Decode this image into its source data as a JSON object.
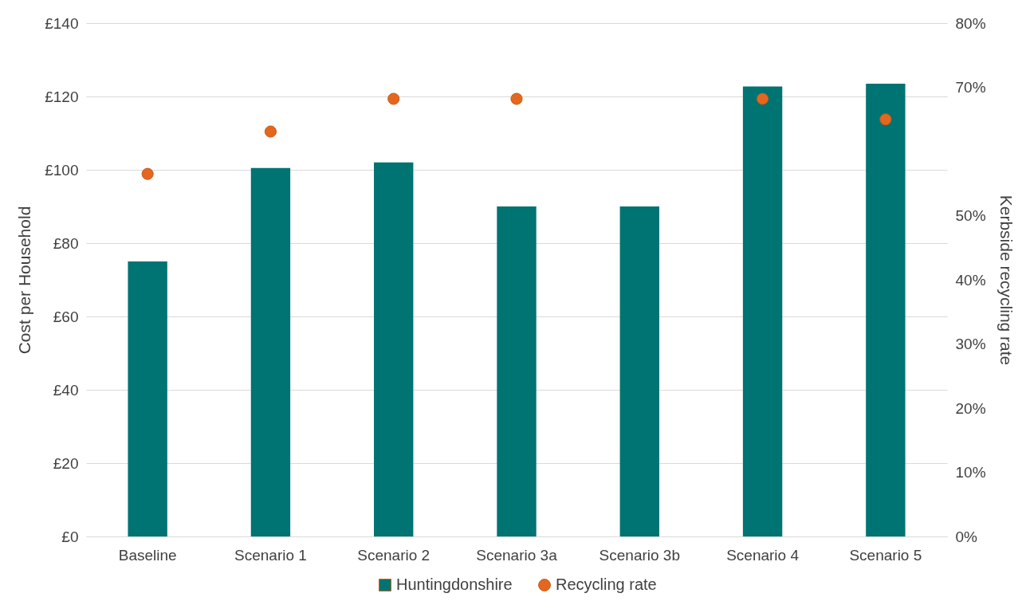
{
  "chart_data": {
    "type": "bar",
    "categories": [
      "Baseline",
      "Scenario 1",
      "Scenario 2",
      "Scenario 3a",
      "Scenario 3b",
      "Scenario 4",
      "Scenario 5"
    ],
    "series": [
      {
        "name": "Huntingdonshire",
        "color": "#007373",
        "values": [
          75,
          100.5,
          102,
          90,
          90,
          122.7,
          123.5
        ]
      },
      {
        "name": "Recycling rate",
        "type": "scatter",
        "axis": "y2",
        "color": "#e5671f",
        "values": [
          56.5,
          63.1,
          68.2,
          68.2,
          null,
          68.2,
          65
        ]
      }
    ],
    "ylabel": "Cost per Household",
    "y2label": "Kerbside recycling rate",
    "ylim": [
      0,
      140
    ],
    "yticks": [
      {
        "value": 0,
        "label": "£0"
      },
      {
        "value": 20,
        "label": "£20"
      },
      {
        "value": 40,
        "label": "£40"
      },
      {
        "value": 60,
        "label": "£60"
      },
      {
        "value": 80,
        "label": "£80"
      },
      {
        "value": 100,
        "label": "£100"
      },
      {
        "value": 120,
        "label": "£120"
      },
      {
        "value": 140,
        "label": "£140"
      }
    ],
    "y2lim": [
      0,
      80
    ],
    "y2ticks": [
      {
        "value": 0,
        "label": "0%"
      },
      {
        "value": 10,
        "label": "10%"
      },
      {
        "value": 20,
        "label": "20%"
      },
      {
        "value": 30,
        "label": "30%"
      },
      {
        "value": 40,
        "label": "40%"
      },
      {
        "value": 50,
        "label": "50%"
      },
      {
        "value": 70,
        "label": "70%"
      },
      {
        "value": 80,
        "label": "80%"
      }
    ],
    "grid": "y",
    "legend": "bottom",
    "marker": "circle"
  }
}
